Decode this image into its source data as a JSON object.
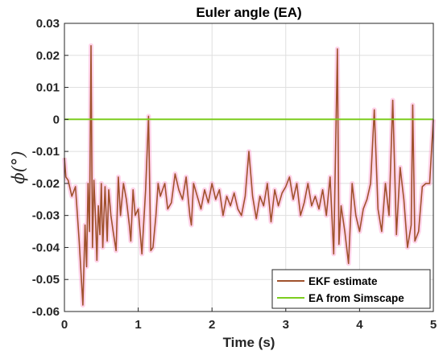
{
  "chart_data": {
    "type": "line",
    "title": "Euler angle (EA)",
    "xlabel": "Time (s)",
    "ylabel": "ϕ(°)",
    "xlim": [
      0,
      5
    ],
    "ylim": [
      -0.06,
      0.03
    ],
    "xticks": [
      0,
      1,
      2,
      3,
      4,
      5
    ],
    "yticks": [
      0.03,
      0.02,
      0.01,
      0,
      -0.01,
      -0.02,
      -0.03,
      -0.04,
      -0.05,
      -0.06
    ],
    "grid": true,
    "legend_position": "bottom-right",
    "colors": {
      "ekf": "#A0522D",
      "ekf_glow": "#FF80C0",
      "simscape": "#7CCD1E"
    },
    "series": [
      {
        "name": "EKF estimate",
        "x": [
          0,
          0.02,
          0.05,
          0.1,
          0.15,
          0.2,
          0.25,
          0.28,
          0.3,
          0.32,
          0.34,
          0.36,
          0.38,
          0.4,
          0.42,
          0.44,
          0.46,
          0.48,
          0.5,
          0.52,
          0.55,
          0.58,
          0.6,
          0.63,
          0.66,
          0.7,
          0.73,
          0.76,
          0.8,
          0.84,
          0.88,
          0.9,
          0.93,
          0.96,
          1.0,
          1.05,
          1.1,
          1.14,
          1.17,
          1.2,
          1.24,
          1.27,
          1.3,
          1.33,
          1.36,
          1.4,
          1.45,
          1.5,
          1.55,
          1.6,
          1.65,
          1.7,
          1.72,
          1.75,
          1.8,
          1.85,
          1.9,
          1.95,
          2.0,
          2.05,
          2.1,
          2.15,
          2.2,
          2.25,
          2.3,
          2.35,
          2.4,
          2.45,
          2.5,
          2.55,
          2.6,
          2.65,
          2.7,
          2.75,
          2.8,
          2.85,
          2.9,
          2.95,
          3.0,
          3.05,
          3.1,
          3.15,
          3.2,
          3.25,
          3.3,
          3.35,
          3.4,
          3.45,
          3.5,
          3.55,
          3.6,
          3.65,
          3.7,
          3.72,
          3.75,
          3.8,
          3.85,
          3.9,
          3.95,
          4.0,
          4.05,
          4.1,
          4.15,
          4.2,
          4.25,
          4.3,
          4.35,
          4.4,
          4.45,
          4.5,
          4.55,
          4.6,
          4.65,
          4.7,
          4.72,
          4.75,
          4.8,
          4.85,
          4.9,
          4.95,
          5.0
        ],
        "y": [
          -0.012,
          -0.018,
          -0.019,
          -0.024,
          -0.021,
          -0.038,
          -0.058,
          -0.033,
          -0.046,
          -0.02,
          -0.035,
          0.023,
          -0.04,
          -0.019,
          -0.03,
          -0.044,
          -0.027,
          -0.036,
          -0.02,
          -0.04,
          -0.021,
          -0.038,
          -0.022,
          -0.03,
          -0.035,
          -0.041,
          -0.018,
          -0.03,
          -0.02,
          -0.025,
          -0.033,
          -0.038,
          -0.022,
          -0.03,
          -0.028,
          -0.042,
          -0.022,
          0.001,
          -0.041,
          -0.04,
          -0.03,
          -0.02,
          -0.024,
          -0.022,
          -0.02,
          -0.028,
          -0.026,
          -0.017,
          -0.022,
          -0.025,
          -0.018,
          -0.03,
          -0.033,
          -0.02,
          -0.024,
          -0.028,
          -0.022,
          -0.026,
          -0.02,
          -0.025,
          -0.022,
          -0.03,
          -0.024,
          -0.027,
          -0.023,
          -0.028,
          -0.03,
          -0.024,
          -0.01,
          -0.024,
          -0.031,
          -0.024,
          -0.027,
          -0.02,
          -0.032,
          -0.022,
          -0.027,
          -0.023,
          -0.021,
          -0.018,
          -0.025,
          -0.02,
          -0.03,
          -0.026,
          -0.02,
          -0.027,
          -0.024,
          -0.028,
          -0.022,
          -0.03,
          -0.018,
          -0.042,
          0.022,
          -0.039,
          -0.027,
          -0.035,
          -0.045,
          -0.02,
          -0.03,
          -0.035,
          -0.028,
          -0.025,
          -0.02,
          0.003,
          -0.028,
          -0.035,
          -0.02,
          -0.03,
          0.006,
          -0.036,
          -0.015,
          -0.025,
          -0.04,
          -0.033,
          0.0045,
          -0.038,
          -0.035,
          -0.021,
          -0.02,
          -0.02,
          0.0
        ]
      },
      {
        "name": "EA from Simscape",
        "x": [
          0,
          5
        ],
        "y": [
          0,
          0
        ]
      }
    ]
  }
}
